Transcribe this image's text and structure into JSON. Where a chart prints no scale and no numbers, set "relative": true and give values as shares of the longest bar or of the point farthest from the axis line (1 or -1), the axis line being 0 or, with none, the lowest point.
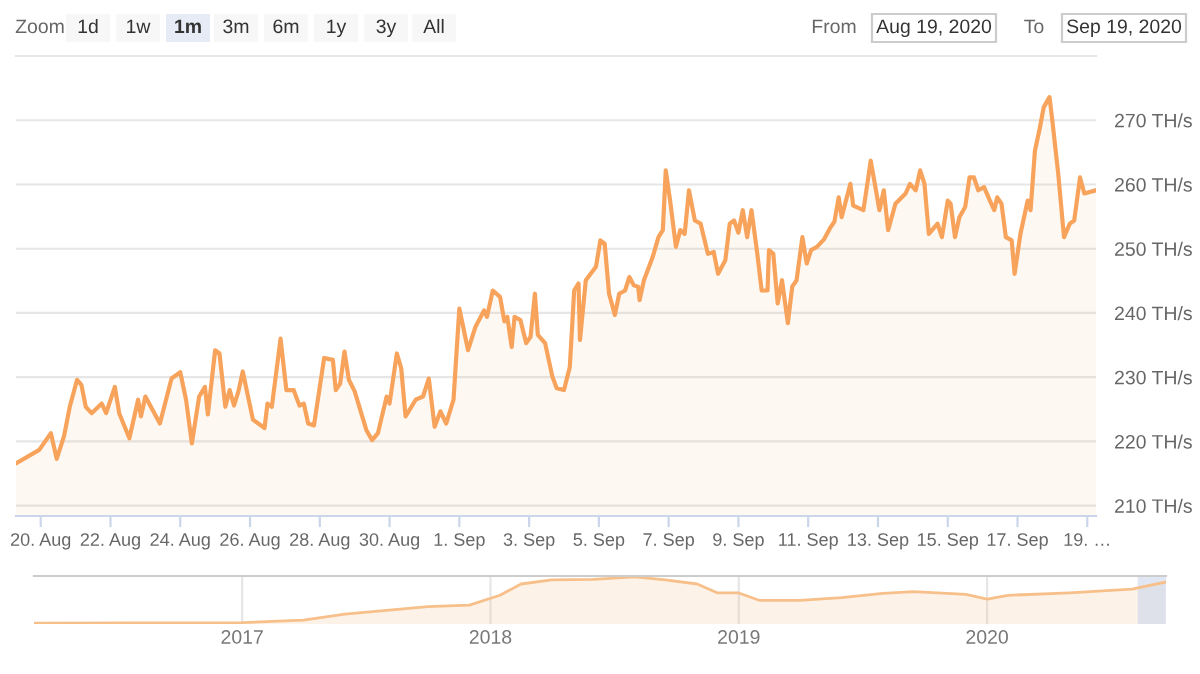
{
  "chart_data": [
    {
      "type": "area",
      "color": "#f7a35c",
      "grid": "y",
      "annotations": [
        "Zoom",
        "1d",
        "1w",
        "1m",
        "3m",
        "6m",
        "1y",
        "3y",
        "All",
        "From",
        "Aug 19, 2020",
        "To",
        "Sep 19, 2020"
      ],
      "xlim": [
        "2020-08-19T07:00",
        "2020-09-19T06:00"
      ],
      "xticks": [
        {
          "value": "2020-08-20",
          "label": "20. Aug"
        },
        {
          "value": "2020-08-22",
          "label": "22. Aug"
        },
        {
          "value": "2020-08-24",
          "label": "24. Aug"
        },
        {
          "value": "2020-08-26",
          "label": "26. Aug"
        },
        {
          "value": "2020-08-28",
          "label": "28. Aug"
        },
        {
          "value": "2020-08-30",
          "label": "30. Aug"
        },
        {
          "value": "2020-09-01",
          "label": "1. Sep"
        },
        {
          "value": "2020-09-03",
          "label": "3. Sep"
        },
        {
          "value": "2020-09-05",
          "label": "5. Sep"
        },
        {
          "value": "2020-09-07",
          "label": "7. Sep"
        },
        {
          "value": "2020-09-09",
          "label": "9. Sep"
        },
        {
          "value": "2020-09-11",
          "label": "11. Sep"
        },
        {
          "value": "2020-09-13",
          "label": "13. Sep"
        },
        {
          "value": "2020-09-15",
          "label": "15. Sep"
        },
        {
          "value": "2020-09-17",
          "label": "17. Sep"
        },
        {
          "value": "2020-09-19",
          "label": "19. …"
        }
      ],
      "ylim": [
        208.4,
        280
      ],
      "yticks": [
        {
          "value": 210,
          "label": "210 TH/s"
        },
        {
          "value": 220,
          "label": "220 TH/s"
        },
        {
          "value": 230,
          "label": "230 TH/s"
        },
        {
          "value": 240,
          "label": "240 TH/s"
        },
        {
          "value": 250,
          "label": "250 TH/s"
        },
        {
          "value": 260,
          "label": "260 TH/s"
        },
        {
          "value": 270,
          "label": "270 TH/s"
        }
      ],
      "x": [
        "2020-08-19T07:00",
        "2020-08-19T23:00",
        "2020-08-20T07:00",
        "2020-08-20T11:00",
        "2020-08-20T16:00",
        "2020-08-20T20:00",
        "2020-08-21T01:00",
        "2020-08-21T04:00",
        "2020-08-21T07:00",
        "2020-08-21T11:00",
        "2020-08-21T18:00",
        "2020-08-21T21:00",
        "2020-08-22T03:00",
        "2020-08-22T06:00",
        "2020-08-22T13:00",
        "2020-08-22T19:00",
        "2020-08-22T21:00",
        "2020-08-23T00:00",
        "2020-08-23T10:00",
        "2020-08-23T18:00",
        "2020-08-24T00:00",
        "2020-08-24T04:00",
        "2020-08-24T08:00",
        "2020-08-24T13:00",
        "2020-08-24T17:00",
        "2020-08-24T19:00",
        "2020-08-25T00:00",
        "2020-08-25T03:00",
        "2020-08-25T07:00",
        "2020-08-25T10:00",
        "2020-08-25T13:00",
        "2020-08-25T16:00",
        "2020-08-25T19:00",
        "2020-08-26T02:00",
        "2020-08-26T10:00",
        "2020-08-26T12:00",
        "2020-08-26T15:00",
        "2020-08-26T21:00",
        "2020-08-27T01:00",
        "2020-08-27T06:00",
        "2020-08-27T10:00",
        "2020-08-27T13:00",
        "2020-08-27T16:00",
        "2020-08-27T20:00",
        "2020-08-28T03:00",
        "2020-08-28T09:00",
        "2020-08-28T11:00",
        "2020-08-28T14:00",
        "2020-08-28T17:00",
        "2020-08-28T20:00",
        "2020-08-29T00:00",
        "2020-08-29T08:00",
        "2020-08-29T12:00",
        "2020-08-29T16:00",
        "2020-08-29T22:00",
        "2020-08-30T00:00",
        "2020-08-30T05:00",
        "2020-08-30T08:00",
        "2020-08-30T11:00",
        "2020-08-30T18:00",
        "2020-08-30T23:00",
        "2020-08-31T03:00",
        "2020-08-31T07:00",
        "2020-08-31T11:00",
        "2020-08-31T15:00",
        "2020-08-31T20:00",
        "2020-09-01T00:00",
        "2020-09-01T06:00",
        "2020-09-01T11:00",
        "2020-09-01T17:00",
        "2020-09-01T19:00",
        "2020-09-01T23:00",
        "2020-09-02T04:00",
        "2020-09-02T07:00",
        "2020-09-02T09:00",
        "2020-09-02T12:00",
        "2020-09-02T14:00",
        "2020-09-02T18:00",
        "2020-09-02T22:00",
        "2020-09-03T01:00",
        "2020-09-03T04:00",
        "2020-09-03T06:00",
        "2020-09-03T11:00",
        "2020-09-03T16:00",
        "2020-09-03T19:00",
        "2020-09-04T00:00",
        "2020-09-04T04:00",
        "2020-09-04T07:00",
        "2020-09-04T10:00",
        "2020-09-04T11:00",
        "2020-09-04T15:00",
        "2020-09-04T22:00",
        "2020-09-05T01:00",
        "2020-09-05T04:00",
        "2020-09-05T07:00",
        "2020-09-05T11:00",
        "2020-09-05T14:00",
        "2020-09-05T18:00",
        "2020-09-05T21:00",
        "2020-09-06T00:00",
        "2020-09-06T03:00",
        "2020-09-06T04:00",
        "2020-09-06T07:00",
        "2020-09-06T13:00",
        "2020-09-06T17:00",
        "2020-09-06T20:00",
        "2020-09-06T22:00",
        "2020-09-07T01:00",
        "2020-09-07T05:00",
        "2020-09-07T08:00",
        "2020-09-07T11:00",
        "2020-09-07T14:00",
        "2020-09-07T18:00",
        "2020-09-07T22:00",
        "2020-09-08T03:00",
        "2020-09-08T07:00",
        "2020-09-08T10:00",
        "2020-09-08T15:00",
        "2020-09-08T18:00",
        "2020-09-08T21:00",
        "2020-09-09T00:00",
        "2020-09-09T03:00",
        "2020-09-09T06:00",
        "2020-09-09T09:00",
        "2020-09-09T13:00",
        "2020-09-09T16:00",
        "2020-09-09T20:00",
        "2020-09-09T21:00",
        "2020-09-10T00:00",
        "2020-09-10T03:00",
        "2020-09-10T06:00",
        "2020-09-10T10:00",
        "2020-09-10T13:00",
        "2020-09-10T16:00",
        "2020-09-10T20:00",
        "2020-09-10T23:00",
        "2020-09-11T02:00",
        "2020-09-11T06:00",
        "2020-09-11T11:00",
        "2020-09-11T15:00",
        "2020-09-11T18:00",
        "2020-09-11T21:00",
        "2020-09-11T23:00",
        "2020-09-12T05:00",
        "2020-09-12T07:00",
        "2020-09-12T14:00",
        "2020-09-12T19:00",
        "2020-09-12T23:00",
        "2020-09-13T01:00",
        "2020-09-13T04:00",
        "2020-09-13T07:00",
        "2020-09-13T12:00",
        "2020-09-13T19:00",
        "2020-09-13T22:00",
        "2020-09-14T02:00",
        "2020-09-14T05:00",
        "2020-09-14T08:00",
        "2020-09-14T11:00",
        "2020-09-14T17:00",
        "2020-09-14T20:00",
        "2020-09-15T00:00",
        "2020-09-15T02:00",
        "2020-09-15T05:00",
        "2020-09-15T08:00",
        "2020-09-15T12:00",
        "2020-09-15T15:00",
        "2020-09-15T18:00",
        "2020-09-15T21:00",
        "2020-09-16T01:00",
        "2020-09-16T05:00",
        "2020-09-16T08:00",
        "2020-09-16T10:00",
        "2020-09-16T13:00",
        "2020-09-16T16:00",
        "2020-09-16T20:00",
        "2020-09-16T22:00",
        "2020-09-17T02:00",
        "2020-09-17T07:00",
        "2020-09-17T09:00",
        "2020-09-17T12:00",
        "2020-09-17T15:00",
        "2020-09-17T18:00",
        "2020-09-17T22:00",
        "2020-09-18T00:00",
        "2020-09-18T04:00",
        "2020-09-18T08:00",
        "2020-09-18T12:00",
        "2020-09-18T15:00",
        "2020-09-18T19:00",
        "2020-09-18T22:00",
        "2020-09-19T06:00"
      ],
      "values": [
        216.6,
        218.7,
        221.3,
        217.3,
        220.8,
        225.4,
        229.6,
        228.8,
        225.4,
        224.4,
        225.9,
        224.4,
        228.5,
        224.4,
        220.5,
        226.5,
        223.9,
        227.0,
        222.8,
        229.8,
        230.8,
        226.5,
        219.7,
        227.0,
        228.5,
        224.2,
        234.2,
        233.7,
        225.4,
        228.0,
        225.6,
        227.8,
        230.9,
        223.4,
        222.1,
        225.9,
        225.4,
        236.0,
        228.0,
        228.0,
        225.6,
        225.9,
        222.8,
        222.5,
        233.0,
        232.7,
        228.0,
        229.0,
        234.0,
        229.6,
        227.8,
        221.8,
        220.2,
        221.3,
        227.0,
        225.9,
        233.7,
        231.4,
        223.9,
        226.5,
        227.0,
        229.8,
        222.3,
        224.7,
        222.8,
        226.5,
        240.7,
        234.2,
        237.8,
        240.4,
        239.4,
        243.5,
        242.5,
        238.7,
        239.4,
        234.7,
        239.4,
        238.9,
        235.3,
        236.3,
        243.0,
        236.6,
        235.3,
        230.1,
        228.3,
        228.0,
        231.6,
        243.5,
        244.6,
        235.8,
        245.1,
        247.2,
        251.3,
        250.8,
        243.0,
        239.7,
        243.0,
        243.5,
        245.6,
        244.3,
        244.1,
        242.0,
        245.1,
        248.7,
        251.8,
        252.9,
        262.2,
        257.5,
        250.3,
        252.9,
        252.3,
        259.1,
        254.4,
        253.9,
        249.2,
        249.5,
        246.1,
        248.2,
        253.9,
        254.4,
        252.5,
        256.0,
        251.8,
        256.0,
        249.2,
        243.5,
        243.5,
        249.8,
        249.2,
        241.5,
        245.1,
        238.4,
        244.1,
        245.1,
        251.8,
        247.7,
        249.8,
        250.3,
        251.5,
        253.2,
        254.2,
        258.0,
        254.9,
        260.1,
        256.7,
        256.0,
        263.7,
        258.6,
        256.0,
        259.1,
        252.9,
        257.0,
        258.6,
        260.1,
        259.1,
        262.2,
        260.1,
        252.3,
        253.9,
        251.8,
        257.5,
        257.0,
        251.8,
        254.9,
        256.5,
        261.1,
        261.1,
        259.1,
        259.6,
        257.5,
        256.0,
        258.0,
        257.0,
        251.8,
        251.3,
        246.1,
        252.3,
        257.5,
        256.0,
        265.3,
        268.4,
        272.0,
        273.6,
        269.9,
        261.7,
        251.8,
        253.9,
        254.4,
        261.1,
        258.6,
        259.1
      ]
    },
    {
      "type": "area",
      "relative": true,
      "color": "#f7c08a",
      "grid": "x",
      "xlim": [
        "2016-03-01",
        "2020-09-20"
      ],
      "xticks": [
        {
          "value": "2017-01-01",
          "label": "2017"
        },
        {
          "value": "2018-01-01",
          "label": "2018"
        },
        {
          "value": "2019-01-01",
          "label": "2019"
        },
        {
          "value": "2020-01-01",
          "label": "2020"
        }
      ],
      "x": [
        "2016-03-01",
        "2017-01-01",
        "2017-04-01",
        "2017-06-01",
        "2017-08-01",
        "2017-10-01",
        "2017-12-01",
        "2018-01-15",
        "2018-02-15",
        "2018-04-01",
        "2018-06-01",
        "2018-08-01",
        "2018-09-15",
        "2018-11-01",
        "2018-12-01",
        "2019-01-01",
        "2019-02-01",
        "2019-04-01",
        "2019-06-01",
        "2019-08-01",
        "2019-09-15",
        "2019-12-01",
        "2020-01-01",
        "2020-02-01",
        "2020-05-01",
        "2020-08-01",
        "2020-09-19"
      ],
      "values": [
        0.02,
        0.03,
        0.08,
        0.21,
        0.29,
        0.37,
        0.4,
        0.61,
        0.85,
        0.94,
        0.95,
        1.0,
        0.94,
        0.85,
        0.66,
        0.66,
        0.5,
        0.5,
        0.56,
        0.65,
        0.69,
        0.63,
        0.53,
        0.61,
        0.66,
        0.74,
        0.89
      ]
    }
  ]
}
